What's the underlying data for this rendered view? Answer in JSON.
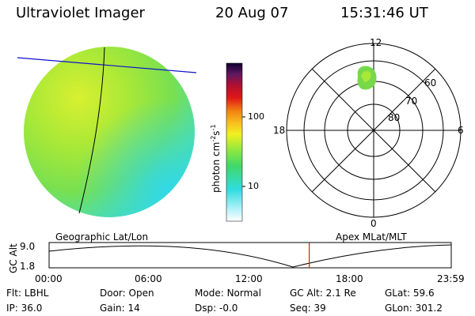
{
  "header": {
    "instrument": "Ultraviolet Imager",
    "date": "20 Aug 07",
    "time": "15:31:46 UT"
  },
  "colorbar": {
    "unit_text": "photon cm",
    "unit_sup1": "-2",
    "unit_mid": "s",
    "unit_sup2": "-1",
    "tick_labels": [
      "100",
      "10"
    ]
  },
  "polar": {
    "mlt_labels": {
      "top": "12",
      "left": "18",
      "right": "6",
      "bottom": "0"
    },
    "lat_labels": [
      "60",
      "70",
      "80"
    ]
  },
  "section_labels": {
    "geographic": "Geographic Lat/Lon",
    "apex": "Apex MLat/MLT"
  },
  "orbit_plot": {
    "axis_label": "GC Alt",
    "y_ticks": [
      "9.0",
      "1.8"
    ],
    "x_ticks": [
      "00:00",
      "06:00",
      "12:00",
      "18:00",
      "23:59"
    ],
    "current_time_fraction": 0.6469
  },
  "info": {
    "filter_label": "Flt:",
    "filter_value": "LBHL",
    "ip_label": "IP:",
    "ip_value": "36.0",
    "door_label": "Door:",
    "door_value": "Open",
    "gain_label": "Gain:",
    "gain_value": "14",
    "mode_label": "Mode:",
    "mode_value": "Normal",
    "dsp_label": "Dsp:",
    "dsp_value": "-0.0",
    "gcalt_label": "GC Alt:",
    "gcalt_value": "2.1 Re",
    "seq_label": "Seq:",
    "seq_value": "39",
    "glat_label": "GLat:",
    "glat_value": "59.6",
    "glon_label": "GLon:",
    "glon_value": "301.2"
  },
  "colors": {
    "earth_green": "#8fe040",
    "earth_yellow": "#c8f030",
    "earth_cyan": "#40e0e8",
    "limb_line": "#1010d0",
    "meridian": "#000000",
    "time_marker": "#cc2200",
    "blob": "#77d94a"
  }
}
